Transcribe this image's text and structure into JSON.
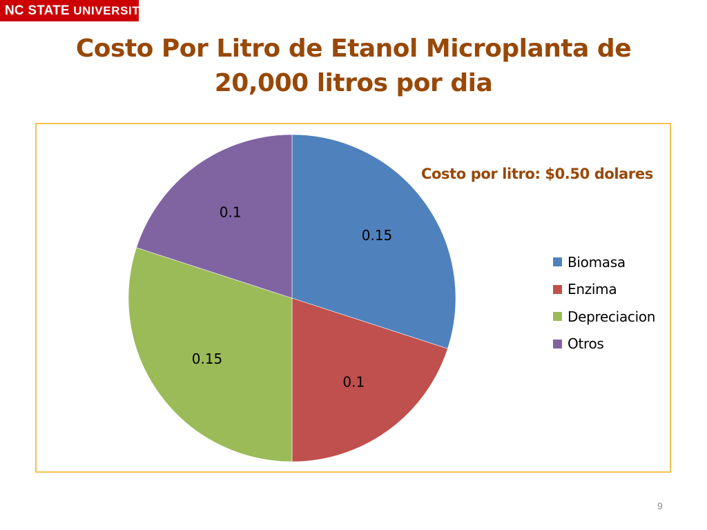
{
  "slide": {
    "logo_text_main": "NC STATE",
    "logo_text_uni": "UNIVERSITY",
    "title_line1": "Costo Por Litro de Etanol Microplanta de",
    "title_line2": "20,000 litros por dia",
    "page_number": "9",
    "title_color": "#984807",
    "logo_color": "#cc0000",
    "frame_color": "#f2c14e"
  },
  "chart_data": {
    "type": "pie",
    "title": "",
    "annotation": "Costo por litro: $0.50  dolares",
    "start_angle_deg": 0,
    "direction": "clockwise",
    "legend_position": "right",
    "slices": [
      {
        "label": "Biomasa",
        "value": 0.15,
        "display": "0.15",
        "color": "#4f81bd"
      },
      {
        "label": "Enzima",
        "value": 0.1,
        "display": "0.1",
        "color": "#c0504d"
      },
      {
        "label": "Depreciacion",
        "value": 0.15,
        "display": "0.15",
        "color": "#9bbb59"
      },
      {
        "label": "Otros",
        "value": 0.1,
        "display": "0.1",
        "color": "#8064a2"
      }
    ]
  }
}
